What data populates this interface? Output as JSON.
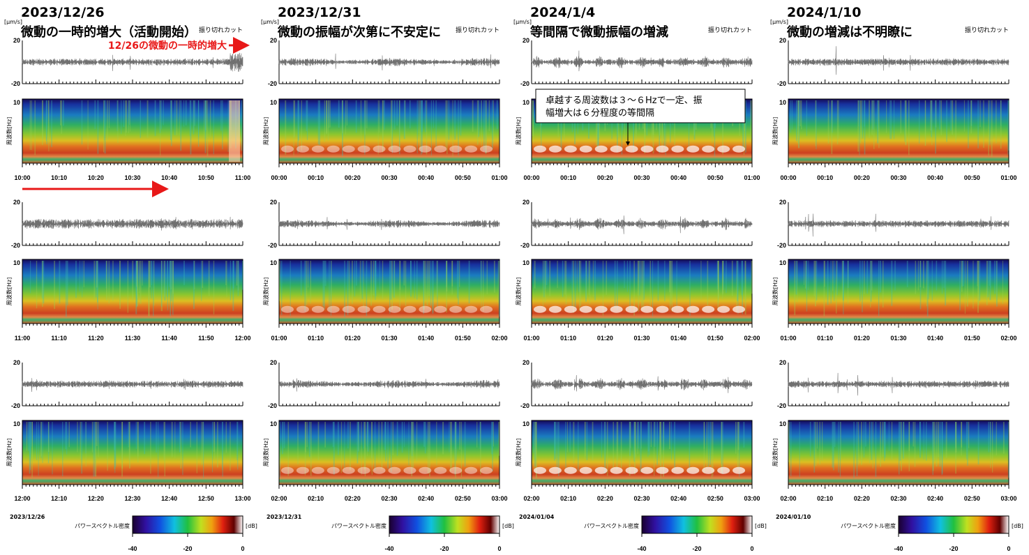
{
  "columns": [
    {
      "date": "2023/12/26",
      "subtitle": "微動の一時的増大（活動開始）",
      "unit": "[μm/s]",
      "cut_label": "振り切れカット",
      "footer_date": "2023/12/26",
      "rows": [
        [
          "10:00",
          "10:10",
          "10:20",
          "10:30",
          "10:40",
          "10:50",
          "11:00"
        ],
        [
          "11:00",
          "11:10",
          "11:20",
          "11:30",
          "11:40",
          "11:50",
          "12:00"
        ],
        [
          "12:00",
          "12:10",
          "12:20",
          "12:30",
          "12:40",
          "12:50",
          "13:00"
        ]
      ]
    },
    {
      "date": "2023/12/31",
      "subtitle": "微動の振幅が次第に不安定に",
      "unit": "[μm/s]",
      "cut_label": "振り切れカット",
      "footer_date": "2023/12/31",
      "rows": [
        [
          "00:00",
          "00:10",
          "00:20",
          "00:30",
          "00:40",
          "00:50",
          "01:00"
        ],
        [
          "01:00",
          "01:10",
          "01:20",
          "01:30",
          "01:40",
          "01:50",
          "02:00"
        ],
        [
          "02:00",
          "02:10",
          "02:20",
          "02:30",
          "02:40",
          "02:50",
          "03:00"
        ]
      ]
    },
    {
      "date": "2024/1/4",
      "subtitle": "等間隔で微動振幅の増減",
      "unit": "[μm/s]",
      "cut_label": "振り切れカット",
      "footer_date": "2024/01/04",
      "rows": [
        [
          "00:00",
          "00:10",
          "00:20",
          "00:30",
          "00:40",
          "00:50",
          "01:00"
        ],
        [
          "01:00",
          "01:10",
          "01:20",
          "01:30",
          "01:40",
          "01:50",
          "02:00"
        ],
        [
          "02:00",
          "02:10",
          "02:20",
          "02:30",
          "02:40",
          "02:50",
          "03:00"
        ]
      ]
    },
    {
      "date": "2024/1/10",
      "subtitle": "微動の増減は不明瞭に",
      "unit": "[μm/s]",
      "cut_label": "振り切れカット",
      "footer_date": "2024/01/10",
      "rows": [
        [
          "00:00",
          "00:10",
          "00:20",
          "00:30",
          "00:40",
          "00:50",
          "01:00"
        ],
        [
          "01:00",
          "01:10",
          "01:20",
          "01:30",
          "01:40",
          "01:50",
          "02:00"
        ],
        [
          "02:00",
          "02:10",
          "02:20",
          "02:30",
          "02:40",
          "02:50",
          "03:00"
        ]
      ]
    }
  ],
  "axis": {
    "amp_ticks": [
      20,
      -20
    ],
    "freq_label": "周波数[Hz]",
    "freq_tick": "10",
    "colorbar_label": "パワースペクトル密度",
    "colorbar_unit": "[dB]",
    "colorbar_ticks": [
      -40,
      -20,
      0
    ]
  },
  "annotations": {
    "burst": "12/26の微動の一時的増大",
    "callout_lines": [
      "卓越する周波数は３～６Hzで一定、振",
      "幅増大は６分程度の等間隔"
    ]
  }
}
